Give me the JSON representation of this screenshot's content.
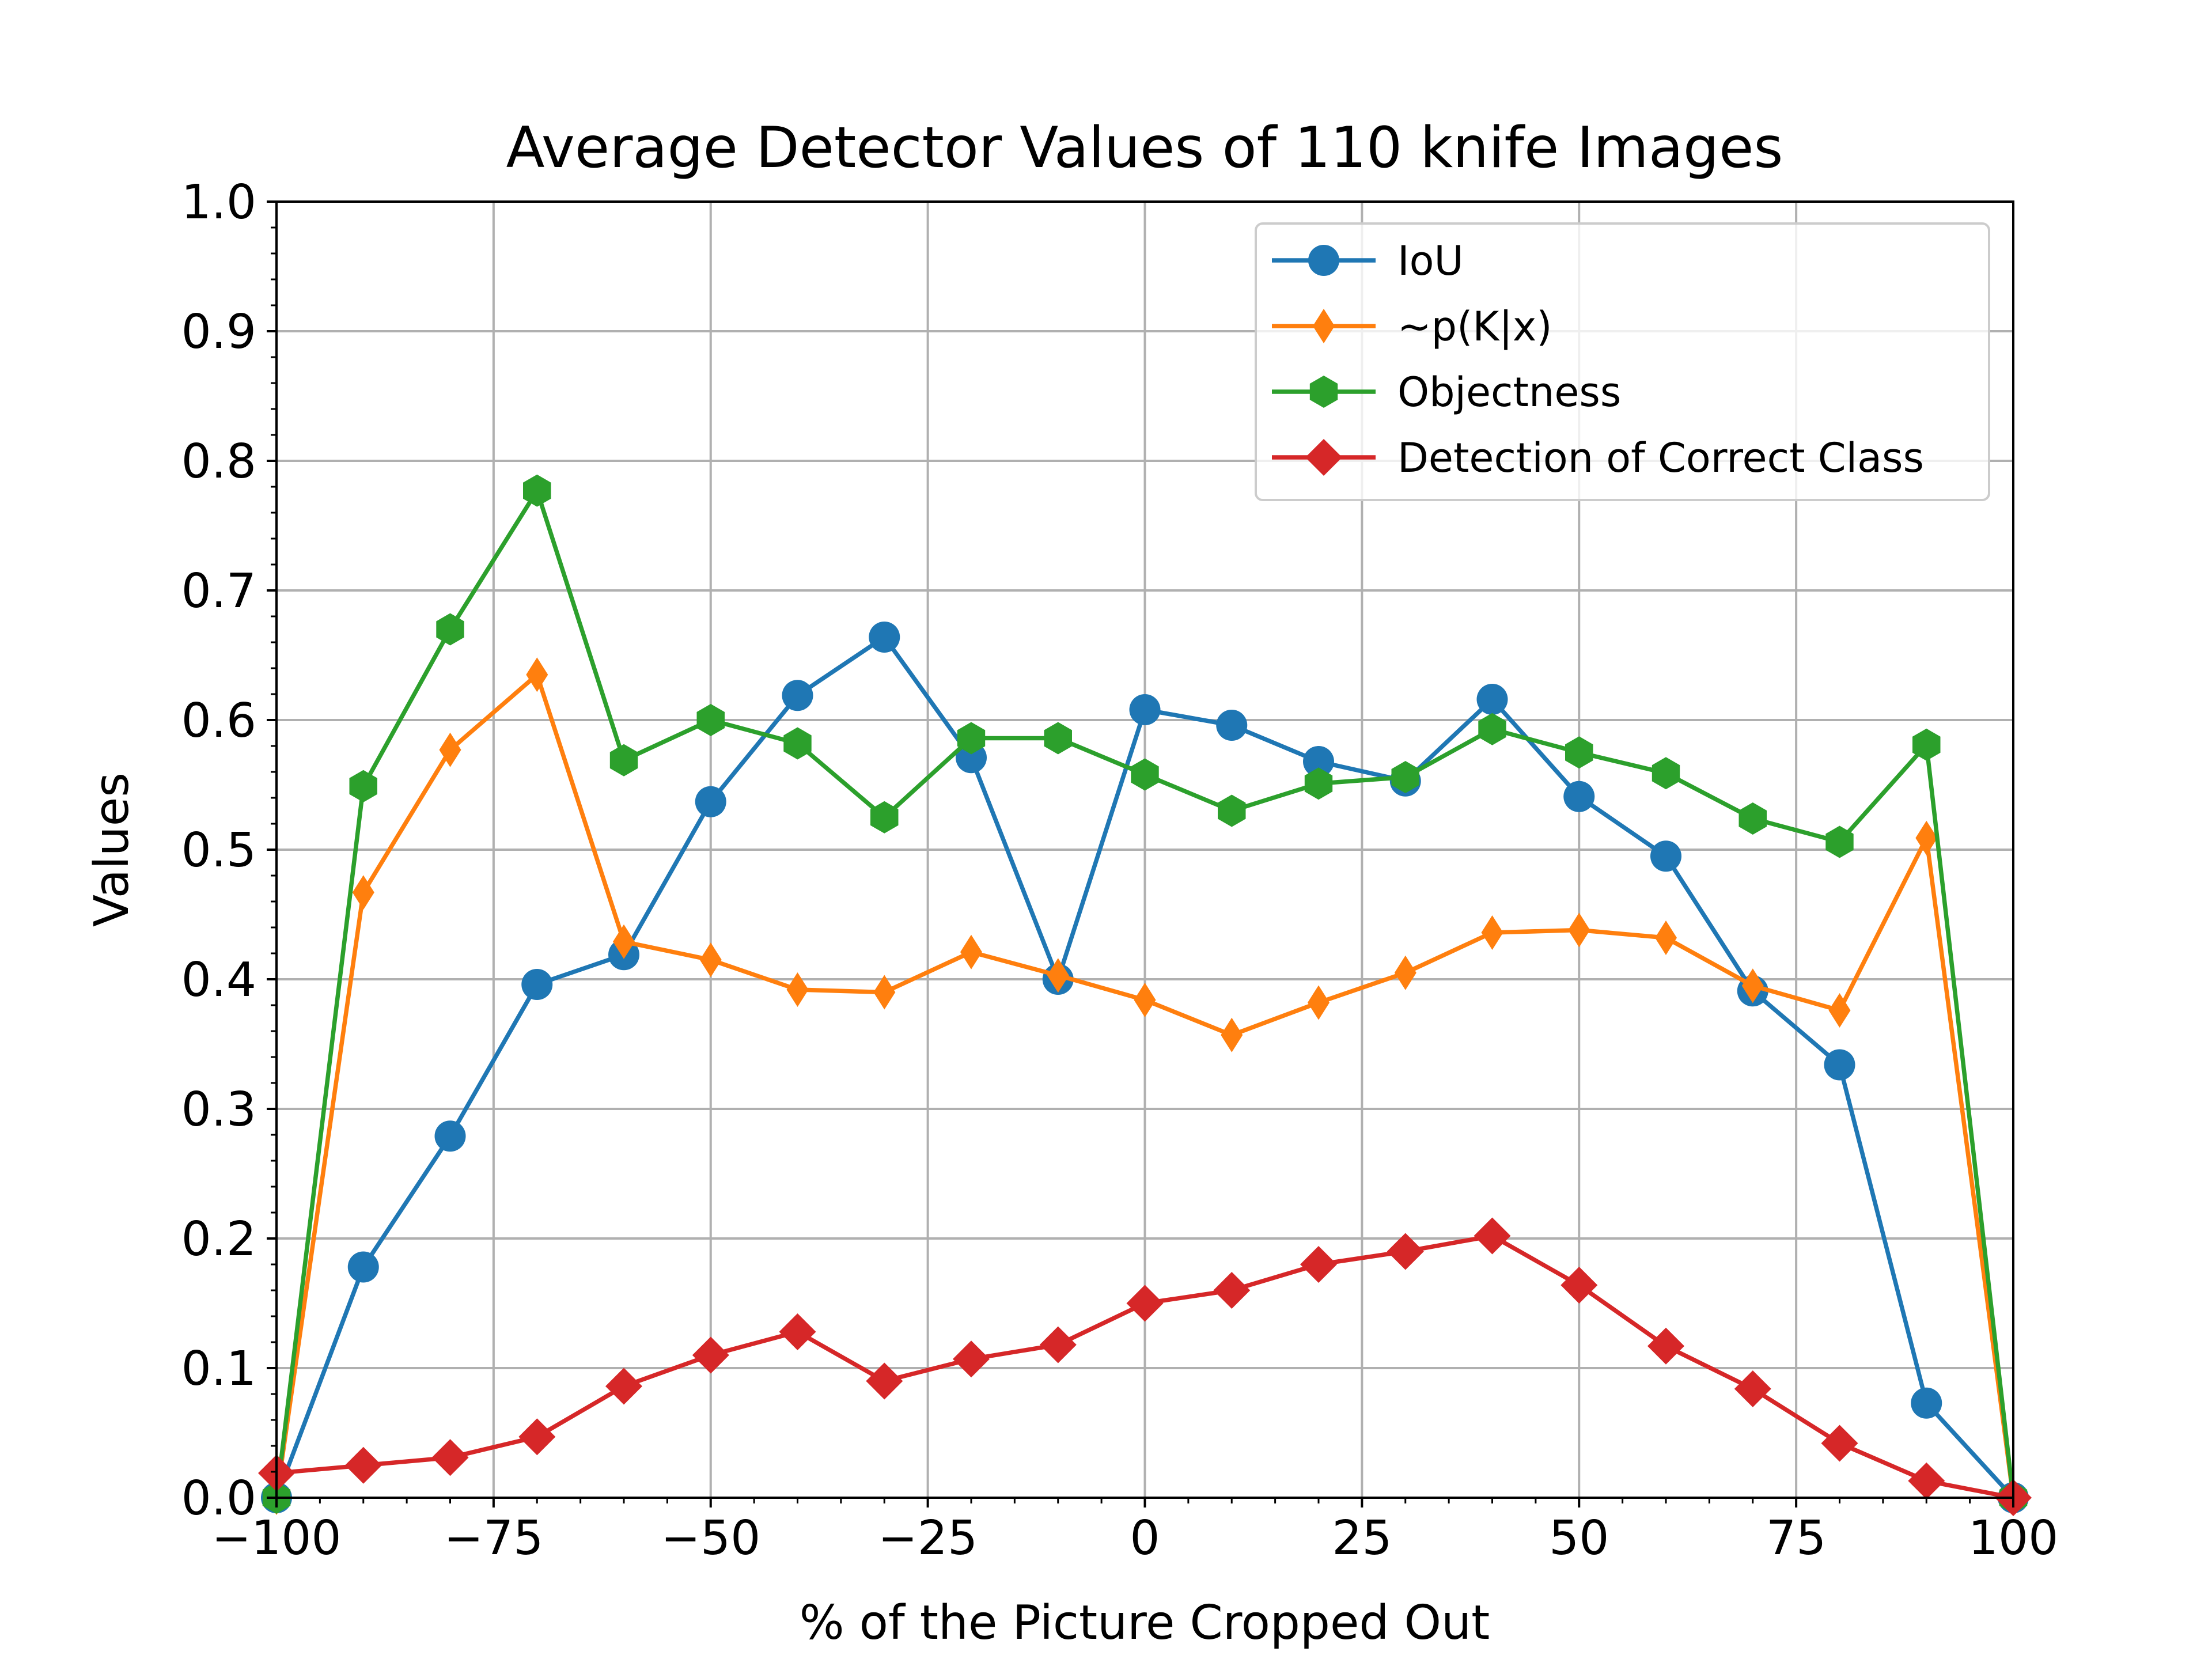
{
  "chart_data": {
    "type": "line",
    "title": "Average Detector Values of 110 knife Images",
    "xlabel": "% of the Picture Cropped Out",
    "ylabel": "Values",
    "xlim": [
      -100,
      100
    ],
    "ylim": [
      0,
      1.0
    ],
    "grid": true,
    "legend_position": "top-right",
    "x": [
      -100,
      -90,
      -80,
      -70,
      -60,
      -50,
      -40,
      -30,
      -20,
      -10,
      0,
      10,
      20,
      30,
      40,
      50,
      60,
      70,
      80,
      90,
      100
    ],
    "xticks": [
      -100,
      -75,
      -50,
      -25,
      0,
      25,
      50,
      75,
      100
    ],
    "xtick_labels": [
      "−100",
      "−75",
      "−50",
      "−25",
      "0",
      "25",
      "50",
      "75",
      "100"
    ],
    "yticks": [
      0.0,
      0.1,
      0.2,
      0.3,
      0.4,
      0.5,
      0.6,
      0.7,
      0.8,
      0.9,
      1.0
    ],
    "ytick_labels": [
      "0.0",
      "0.1",
      "0.2",
      "0.3",
      "0.4",
      "0.5",
      "0.6",
      "0.7",
      "0.8",
      "0.9",
      "1.0"
    ],
    "series": [
      {
        "name": "IoU",
        "color": "#1f77b4",
        "marker": "circle",
        "values": [
          0.0,
          0.178,
          0.279,
          0.396,
          0.419,
          0.537,
          0.619,
          0.664,
          0.571,
          0.4,
          0.608,
          0.596,
          0.568,
          0.553,
          0.616,
          0.541,
          0.495,
          0.391,
          0.334,
          0.073,
          0.0
        ]
      },
      {
        "name": "~p(K|x)",
        "color": "#ff7f0e",
        "marker": "thin_diamond",
        "values": [
          0.0,
          0.467,
          0.577,
          0.635,
          0.429,
          0.415,
          0.392,
          0.39,
          0.421,
          0.403,
          0.384,
          0.357,
          0.382,
          0.405,
          0.436,
          0.438,
          0.432,
          0.395,
          0.376,
          0.509,
          0.0
        ]
      },
      {
        "name": "Objectness",
        "color": "#2ca02c",
        "marker": "hexagon",
        "values": [
          0.0,
          0.549,
          0.67,
          0.777,
          0.569,
          0.6,
          0.582,
          0.525,
          0.586,
          0.586,
          0.558,
          0.53,
          0.551,
          0.556,
          0.593,
          0.575,
          0.559,
          0.524,
          0.506,
          0.581,
          0.0
        ]
      },
      {
        "name": "Detection of Correct Class",
        "color": "#d62728",
        "marker": "diamond",
        "values": [
          0.019,
          0.025,
          0.031,
          0.047,
          0.086,
          0.11,
          0.128,
          0.09,
          0.107,
          0.118,
          0.15,
          0.16,
          0.18,
          0.19,
          0.202,
          0.164,
          0.117,
          0.084,
          0.042,
          0.013,
          0.0
        ]
      }
    ]
  }
}
